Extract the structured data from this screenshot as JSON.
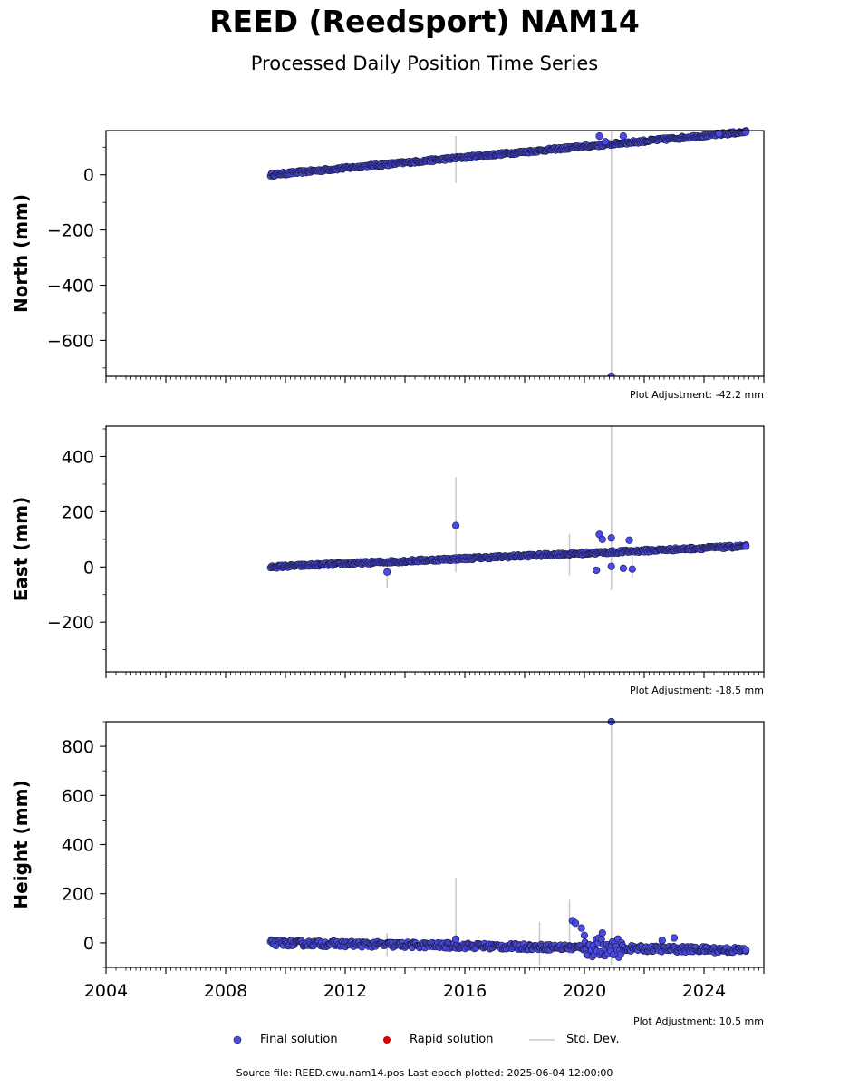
{
  "title": "REED (Reedsport) NAM14",
  "subtitle": "Processed Daily Position Time Series",
  "footer": "Source file: REED.cwu.nam14.pos  Last epoch plotted: 2025-06-04 12:00:00",
  "colors": {
    "final": "#4a4ae6",
    "final_edge": "#1a1a3a",
    "rapid": "#dd0000",
    "stddev": "#c8c8c8"
  },
  "legend": {
    "final": "Final solution",
    "rapid": "Rapid solution",
    "stddev": "Std. Dev."
  },
  "chart_data": [
    {
      "type": "scatter",
      "ylabel": "North (mm)",
      "adjustment": "Plot Adjustment: -42.2 mm",
      "xlim": [
        2004,
        2026
      ],
      "ylim": [
        -730,
        160
      ],
      "yticks": [
        0,
        -200,
        -400,
        -600
      ],
      "ytick_labels": [
        "0",
        "−200",
        "−400",
        "−600"
      ],
      "trend": {
        "x": [
          2009.5,
          2025.4
        ],
        "y": [
          0,
          155
        ]
      },
      "outliers": [
        {
          "x": 2020.5,
          "y": 140
        },
        {
          "x": 2020.7,
          "y": 120
        },
        {
          "x": 2021.3,
          "y": 140
        },
        {
          "x": 2020.9,
          "y": -730
        },
        {
          "x": 2024.5,
          "y": 148
        },
        {
          "x": 2025.4,
          "y": 155
        }
      ],
      "errorbars": [
        {
          "x": 2015.7,
          "y1": -30,
          "y2": 140
        },
        {
          "x": 2020.9,
          "y1": -730,
          "y2": 160
        }
      ]
    },
    {
      "type": "scatter",
      "ylabel": "East (mm)",
      "adjustment": "Plot Adjustment: -18.5 mm",
      "xlim": [
        2004,
        2026
      ],
      "ylim": [
        -380,
        510
      ],
      "yticks": [
        400,
        200,
        0,
        -200
      ],
      "ytick_labels": [
        "400",
        "200",
        "0",
        "−200"
      ],
      "trend": {
        "x": [
          2009.5,
          2025.4
        ],
        "y": [
          0,
          75
        ]
      },
      "outliers": [
        {
          "x": 2013.4,
          "y": -18
        },
        {
          "x": 2015.7,
          "y": 150
        },
        {
          "x": 2020.4,
          "y": -12
        },
        {
          "x": 2020.5,
          "y": 118
        },
        {
          "x": 2020.6,
          "y": 100
        },
        {
          "x": 2020.9,
          "y": 105
        },
        {
          "x": 2020.9,
          "y": 2
        },
        {
          "x": 2021.3,
          "y": -5
        },
        {
          "x": 2021.5,
          "y": 97
        },
        {
          "x": 2021.6,
          "y": -8
        },
        {
          "x": 2025.4,
          "y": 75
        }
      ],
      "errorbars": [
        {
          "x": 2013.4,
          "y1": -75,
          "y2": 35
        },
        {
          "x": 2015.7,
          "y1": -20,
          "y2": 325
        },
        {
          "x": 2019.5,
          "y1": -30,
          "y2": 120
        },
        {
          "x": 2020.9,
          "y1": -85,
          "y2": 510
        },
        {
          "x": 2021.6,
          "y1": -40,
          "y2": 40
        }
      ]
    },
    {
      "type": "scatter",
      "ylabel": "Height (mm)",
      "adjustment": "Plot Adjustment: 10.5 mm",
      "xlim": [
        2004,
        2026
      ],
      "ylim": [
        -100,
        900
      ],
      "xticks": [
        2004,
        2008,
        2012,
        2016,
        2020,
        2024
      ],
      "xtick_labels": [
        "2004",
        "2008",
        "2012",
        "2016",
        "2020",
        "2024"
      ],
      "yticks": [
        800,
        600,
        400,
        200,
        0
      ],
      "ytick_labels": [
        "800",
        "600",
        "400",
        "200",
        "0"
      ],
      "trend": {
        "x": [
          2009.5,
          2025.4
        ],
        "y": [
          0,
          -30
        ]
      },
      "outliers": [
        {
          "x": 2015.7,
          "y": 15
        },
        {
          "x": 2019.6,
          "y": 90
        },
        {
          "x": 2019.7,
          "y": 80
        },
        {
          "x": 2019.9,
          "y": 60
        },
        {
          "x": 2020.0,
          "y": 30
        },
        {
          "x": 2020.6,
          "y": 40
        },
        {
          "x": 2020.9,
          "y": 900
        },
        {
          "x": 2022.6,
          "y": 10
        },
        {
          "x": 2023.0,
          "y": 20
        },
        {
          "x": 2025.4,
          "y": -30
        }
      ],
      "errorbars": [
        {
          "x": 2013.4,
          "y1": -55,
          "y2": 40
        },
        {
          "x": 2015.7,
          "y1": -30,
          "y2": 265
        },
        {
          "x": 2018.5,
          "y1": -90,
          "y2": 85
        },
        {
          "x": 2019.5,
          "y1": -50,
          "y2": 175
        },
        {
          "x": 2020.9,
          "y1": -90,
          "y2": 900
        }
      ]
    }
  ]
}
